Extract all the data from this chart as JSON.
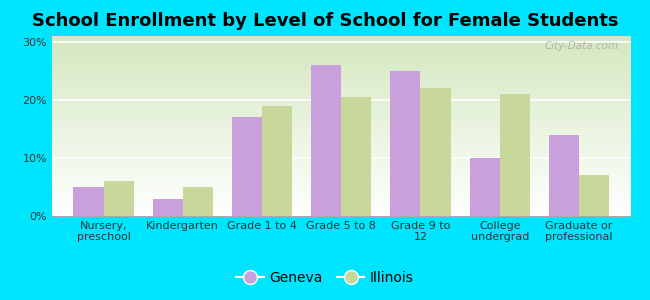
{
  "title": "School Enrollment by Level of School for Female Students",
  "categories": [
    "Nursery,\npreschool",
    "Kindergarten",
    "Grade 1 to 4",
    "Grade 5 to 8",
    "Grade 9 to\n12",
    "College\nundergrad",
    "Graduate or\nprofessional"
  ],
  "geneva_values": [
    5.0,
    3.0,
    17.0,
    26.0,
    25.0,
    10.0,
    14.0
  ],
  "illinois_values": [
    6.0,
    5.0,
    19.0,
    20.5,
    22.0,
    21.0,
    7.0
  ],
  "geneva_color": "#c9a0dc",
  "illinois_color": "#c8d89a",
  "background_outer": "#00e5ff",
  "ylabel_ticks": [
    0,
    10,
    20,
    30
  ],
  "ylim": [
    0,
    31
  ],
  "bar_width": 0.38,
  "title_fontsize": 13,
  "tick_fontsize": 8,
  "legend_fontsize": 10,
  "watermark": "City-Data.com"
}
